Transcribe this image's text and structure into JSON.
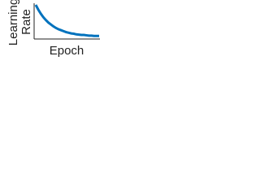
{
  "chart_data": {
    "type": "line",
    "xlabel": "Epoch",
    "ylabel": [
      "Learning",
      "Rate"
    ],
    "x": [
      0,
      1,
      2,
      3,
      4,
      5,
      6,
      7,
      8,
      9,
      10,
      11,
      12,
      13,
      14,
      15,
      16,
      17,
      18,
      19,
      20,
      21,
      22,
      23,
      24,
      25
    ],
    "series": [
      {
        "name": "Learning Rate",
        "color": "#0072bd",
        "values": [
          1,
          0.85,
          0.72,
          0.61,
          0.52,
          0.44,
          0.38,
          0.32,
          0.27,
          0.23,
          0.2,
          0.17,
          0.14,
          0.12,
          0.1,
          0.09,
          0.07,
          0.06,
          0.05,
          0.05,
          0.04,
          0.03,
          0.03,
          0.02,
          0.02,
          0.02
        ]
      }
    ],
    "xlim": [
      0,
      25
    ],
    "ylim": [
      0,
      1
    ],
    "grid": false
  }
}
